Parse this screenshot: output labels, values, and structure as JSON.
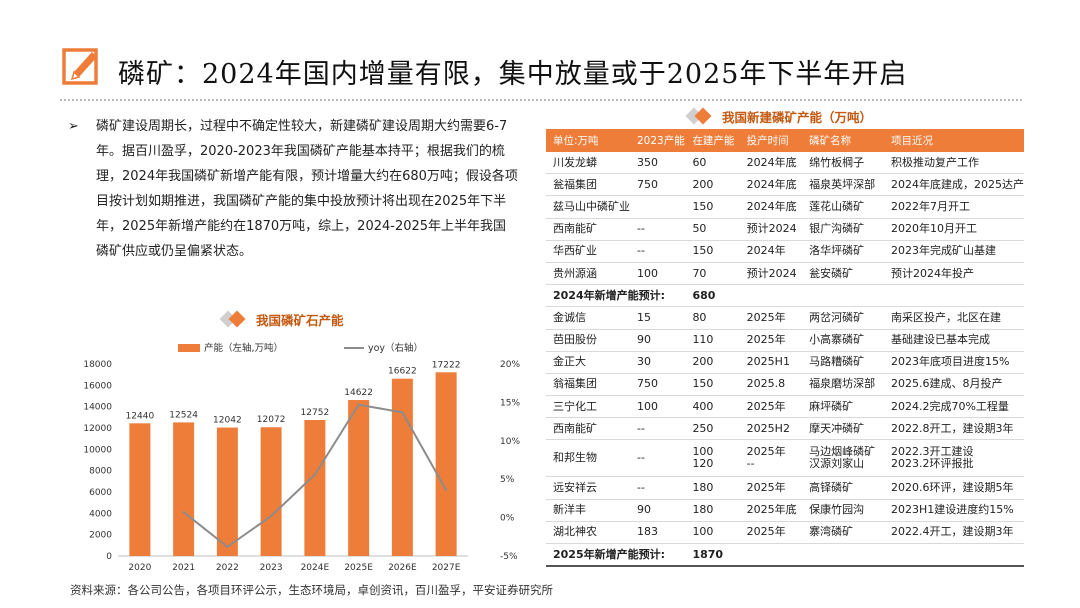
{
  "title": "磷矿：2024年国内增量有限，集中放量或于2025年下半年开启",
  "bullet": {
    "marker": "➢",
    "text": "磷矿建设周期长，过程中不确定性较大，新建磷矿建设周期大约需要6-7年。据百川盈孚，2020-2023年我国磷矿产能基本持平；根据我们的梳理，2024年我国磷矿新增产能有限，预计增量大约在680万吨；假设各项目按计划如期推进，我国磷矿产能的集中投放预计将出现在2025年下半年，2025年新增产能约在1870万吨，综上，2024-2025年上半年我国磷矿供应或仍呈偏紧状态。"
  },
  "colors": {
    "accent": "#ef7d3a",
    "line": "#8c8c8c",
    "title_red": "#c45911"
  },
  "chart_title": "我国磷矿石产能",
  "chart_data": {
    "type": "bar",
    "categories": [
      "2020",
      "2021",
      "2022",
      "2023",
      "2024E",
      "2025E",
      "2026E",
      "2027E"
    ],
    "series": [
      {
        "name": "产能（左轴,万吨）",
        "type": "bar",
        "axis": "left",
        "values": [
          12440,
          12524,
          12042,
          12072,
          12752,
          14622,
          16622,
          17222
        ]
      },
      {
        "name": "yoy（右轴）",
        "type": "line",
        "axis": "right",
        "values": [
          null,
          0.7,
          -3.8,
          0.2,
          5.6,
          14.7,
          13.7,
          3.6
        ]
      }
    ],
    "data_labels": [
      "12440",
      "12524",
      "12042",
      "12072",
      "12752",
      "14622",
      "16622",
      "17222"
    ],
    "ylim": [
      0,
      18000
    ],
    "yticks": [
      "0",
      "2000",
      "4000",
      "6000",
      "8000",
      "10000",
      "12000",
      "14000",
      "16000",
      "18000"
    ],
    "y2lim": [
      -5,
      20
    ],
    "y2ticks": [
      "-5%",
      "0%",
      "5%",
      "10%",
      "15%",
      "20%"
    ],
    "legend_position": "top"
  },
  "table_title": "我国新建磷矿产能（万吨）",
  "table": {
    "headers": [
      "单位:万吨",
      "2023产能",
      "在建产能",
      "投产时间",
      "磷矿名称",
      "项目近况"
    ],
    "rows": [
      [
        "川发龙蟒",
        "350",
        "60",
        "2024年底",
        "绵竹板棡子",
        "积极推动复产工作"
      ],
      [
        "瓮福集团",
        "750",
        "200",
        "2024年底",
        "福泉英坪深部",
        "2024年底建成，2025达产"
      ],
      [
        "兹马山中磷矿业",
        "",
        "150",
        "2024年底",
        "莲花山磷矿",
        "2022年7月开工"
      ],
      [
        "西南能矿",
        "--",
        "50",
        "预计2024",
        "银广沟磷矿",
        "2020年10月开工"
      ],
      [
        "华西矿业",
        "--",
        "150",
        "2024年",
        "洛华坪磷矿",
        "2023年完成矿山基建"
      ],
      [
        "贵州源涵",
        "100",
        "70",
        "预计2024",
        "瓮安磷矿",
        "预计2024年投产"
      ]
    ],
    "subtotal_2024": {
      "label": "2024年新增产能预计:",
      "value": "680"
    },
    "rows_2025": [
      [
        "金诚信",
        "15",
        "80",
        "2025年",
        "两岔河磷矿",
        "南采区投产，北区在建"
      ],
      [
        "芭田股份",
        "90",
        "110",
        "2025年",
        "小高寨磷矿",
        "基础建设已基本完成"
      ],
      [
        "金正大",
        "30",
        "200",
        "2025H1",
        "马路糟磷矿",
        "2023年底项目进度15%"
      ],
      [
        "翁福集团",
        "750",
        "150",
        "2025.8",
        "福泉磨坊深部",
        "2025.6建成、8月投产"
      ],
      [
        "三宁化工",
        "100",
        "400",
        "2025年",
        "麻坪磷矿",
        "2024.2完成70%工程量"
      ],
      [
        "西南能矿",
        "--",
        "250",
        "2025H2",
        "摩天冲磷矿",
        "2022.8开工，建设期3年"
      ]
    ],
    "hebang": {
      "company": "和邦生物",
      "cap2023": "--",
      "building": [
        "100",
        "120"
      ],
      "time": [
        "2025年",
        "--"
      ],
      "mine": [
        "马边烟峰磷矿",
        "汉源刘家山"
      ],
      "status": [
        "2022.3开工建设",
        "2023.2环评报批"
      ]
    },
    "rows_2025b": [
      [
        "远安祥云",
        "--",
        "180",
        "2025年",
        "高铎磷矿",
        "2020.6环评，建设期5年"
      ],
      [
        "新洋丰",
        "90",
        "180",
        "2025年底",
        "保康竹园沟",
        "2023H1建设进度约15%"
      ],
      [
        "湖北神农",
        "183",
        "100",
        "2025年",
        "寨湾磷矿",
        "2022.4开工，建设期3年"
      ]
    ],
    "subtotal_2025": {
      "label": "2025年新增产能预计:",
      "value": "1870"
    }
  },
  "source": "资料来源：各公司公告，各项目环评公示，生态环境局，卓创资讯，百川盈孚，平安证券研究所"
}
